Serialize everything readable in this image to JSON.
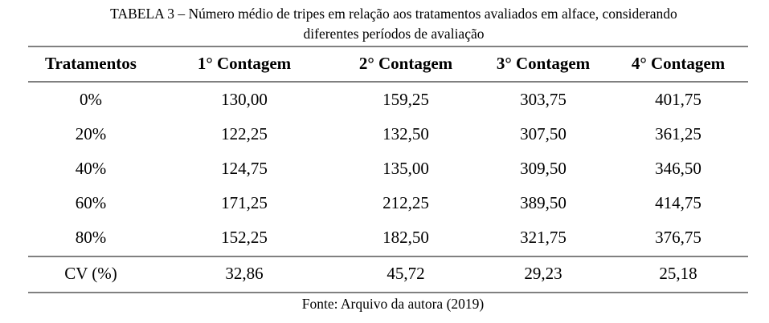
{
  "table": {
    "title": [
      "TABELA 3 – Número médio de tripes em relação aos tratamentos avaliados em alface, considerando",
      "diferentes períodos de avaliação"
    ],
    "header": [
      "Tratamentos",
      "1° Contagem",
      "2° Contagem",
      "3° Contagem",
      "4° Contagem"
    ],
    "rows": [
      [
        "0%",
        "130,00",
        "159,25",
        "303,75",
        "401,75"
      ],
      [
        "20%",
        "122,25",
        "132,50",
        "307,50",
        "361,25"
      ],
      [
        "40%",
        "124,75",
        "135,00",
        "309,50",
        "346,50"
      ],
      [
        "60%",
        "171,25",
        "212,25",
        "389,50",
        "414,75"
      ],
      [
        "80%",
        "152,25",
        "182,50",
        "321,75",
        "376,75"
      ]
    ],
    "footer_row": [
      "CV (%)",
      "32,86",
      "45,72",
      "29,23",
      "25,18"
    ],
    "source": "Fonte: Arquivo da autora (2019)"
  }
}
